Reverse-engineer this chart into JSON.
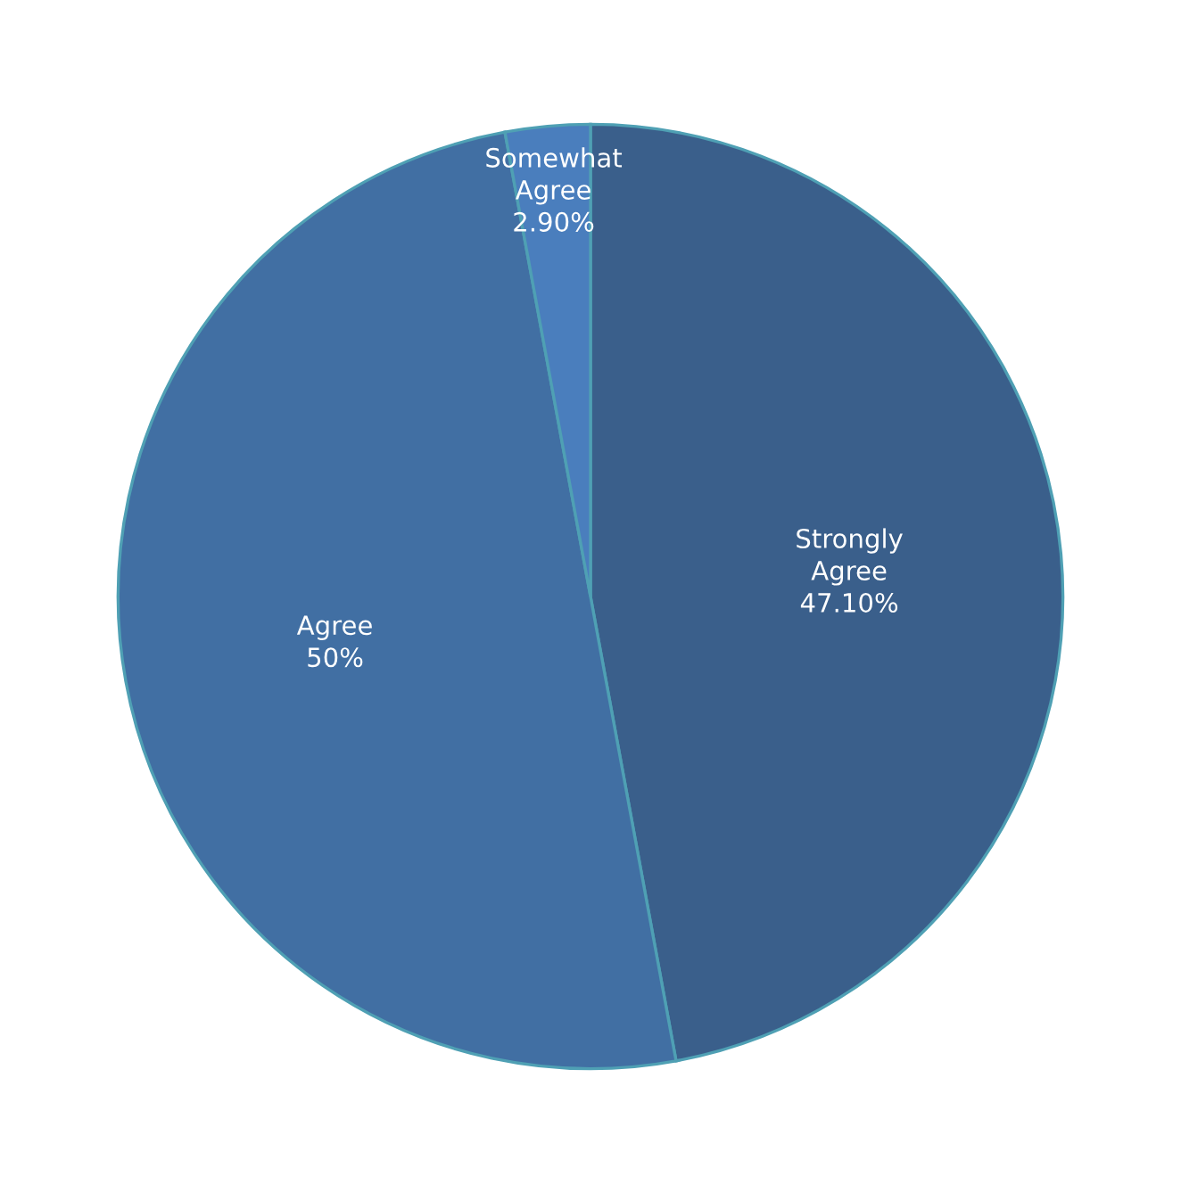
{
  "chart_data": {
    "type": "pie",
    "categories": [
      "Strongly Agree",
      "Agree",
      "Somewhat Agree"
    ],
    "values": [
      47.1,
      50,
      2.9
    ],
    "value_labels": [
      "47.10%",
      "50%",
      "2.90%"
    ],
    "colors": [
      "#3a5f8b",
      "#416fa3",
      "#4a7ebd"
    ]
  }
}
